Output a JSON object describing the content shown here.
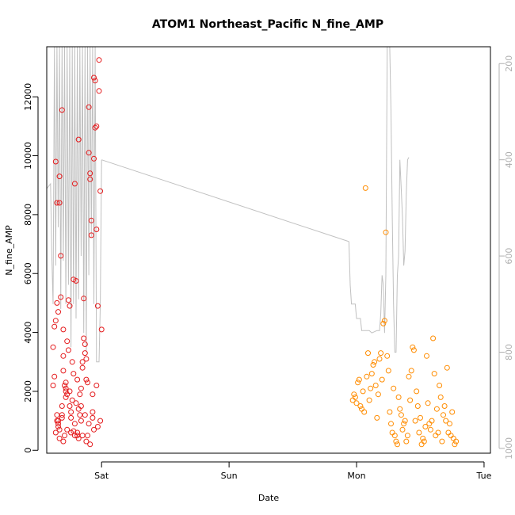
{
  "chart_data": {
    "type": "scatter",
    "title": "ATOM1 Northeast_Pacific N_fine_AMP",
    "xlabel": "Date",
    "ylabel": "N_fine_AMP",
    "x_tick_labels": [
      "Sat",
      "Sun",
      "Mon",
      "Tue"
    ],
    "x_range_days": [
      -0.43,
      3.05
    ],
    "ylim": [
      -100,
      13700
    ],
    "y_ticks": [
      0,
      2000,
      4000,
      6000,
      8000,
      10000,
      12000
    ],
    "y2_ticks": [
      200,
      400,
      600,
      800,
      1000
    ],
    "y2_range_reversed": [
      1010,
      165
    ],
    "grid": false,
    "series": [
      {
        "color": "#e41a1c",
        "x": [
          -0.38,
          -0.38,
          -0.37,
          -0.37,
          -0.36,
          -0.36,
          -0.35,
          -0.35,
          -0.35,
          -0.35,
          -0.34,
          -0.34,
          -0.34,
          -0.33,
          -0.33,
          -0.33,
          -0.32,
          -0.32,
          -0.31,
          -0.31,
          -0.31,
          -0.3,
          -0.3,
          -0.3,
          -0.29,
          -0.29,
          -0.28,
          -0.28,
          -0.28,
          -0.27,
          -0.27,
          -0.26,
          -0.26,
          -0.25,
          -0.25,
          -0.24,
          -0.24,
          -0.23,
          -0.23,
          -0.22,
          -0.22,
          -0.21,
          -0.21,
          -0.2,
          -0.2,
          -0.19,
          -0.19,
          -0.18,
          -0.18,
          -0.17,
          -0.17,
          -0.16,
          -0.16,
          -0.15,
          -0.15,
          -0.14,
          -0.14,
          -0.13,
          -0.13,
          -0.12,
          -0.12,
          -0.11,
          -0.11,
          -0.1,
          -0.1,
          -0.09,
          -0.09,
          -0.08,
          -0.08,
          -0.07,
          -0.07,
          -0.06,
          -0.06,
          -0.05,
          -0.05,
          -0.04,
          -0.04,
          -0.03,
          -0.02,
          -0.02,
          -0.01,
          -0.01,
          0.0,
          -0.36,
          -0.33,
          -0.3,
          -0.27,
          -0.24,
          -0.21,
          -0.18,
          -0.15,
          -0.12,
          -0.09,
          -0.06,
          -0.03,
          -0.34,
          -0.31,
          -0.28,
          -0.25,
          -0.22,
          -0.19,
          -0.16,
          -0.13,
          -0.1,
          -0.07,
          -0.04
        ],
        "y": [
          2200,
          3500,
          4200,
          2500,
          4400,
          9800,
          8400,
          5000,
          1200,
          1000,
          4700,
          900,
          800,
          700,
          9300,
          8400,
          6600,
          5200,
          1500,
          1200,
          11550,
          2700,
          3200,
          4100,
          2200,
          500,
          2300,
          2100,
          2000,
          1900,
          3700,
          3400,
          5100,
          4900,
          1500,
          1300,
          1100,
          3000,
          1700,
          650,
          5800,
          9050,
          900,
          1600,
          5750,
          500,
          600,
          1400,
          10550,
          1200,
          1900,
          2100,
          1000,
          3000,
          2800,
          5150,
          3800,
          3600,
          3300,
          3100,
          2400,
          2300,
          500,
          11650,
          10100,
          9400,
          9200,
          7300,
          7800,
          1300,
          1100,
          9900,
          12650,
          12550,
          10950,
          11000,
          7500,
          4900,
          13250,
          12200,
          1000,
          8800,
          4100,
          600,
          400,
          300,
          700,
          600,
          500,
          400,
          500,
          300,
          200,
          700,
          800,
          1000,
          1100,
          1800,
          2000,
          2600,
          2400,
          1500,
          1200,
          900,
          1900,
          2200
        ],
        "x_outliers": [],
        "y_outliers": []
      },
      {
        "color": "#ff8c00",
        "x": [
          1.97,
          1.98,
          1.99,
          2.0,
          2.01,
          2.02,
          2.03,
          2.04,
          2.05,
          2.06,
          2.07,
          2.08,
          2.09,
          2.1,
          2.11,
          2.12,
          2.13,
          2.14,
          2.15,
          2.16,
          2.17,
          2.18,
          2.19,
          2.2,
          2.21,
          2.22,
          2.23,
          2.24,
          2.25,
          2.26,
          2.27,
          2.28,
          2.29,
          2.3,
          2.31,
          2.32,
          2.33,
          2.34,
          2.35,
          2.36,
          2.37,
          2.38,
          2.39,
          2.4,
          2.41,
          2.42,
          2.43,
          2.44,
          2.45,
          2.46,
          2.47,
          2.48,
          2.49,
          2.5,
          2.51,
          2.52,
          2.53,
          2.54,
          2.55,
          2.56,
          2.57,
          2.58,
          2.59,
          2.6,
          2.61,
          2.62,
          2.63,
          2.64,
          2.65,
          2.66,
          2.67,
          2.68,
          2.69,
          2.7,
          2.71,
          2.72,
          2.73,
          2.74,
          2.75,
          2.76,
          2.77,
          2.78
        ],
        "y": [
          1700,
          1900,
          1800,
          1600,
          2300,
          2400,
          1500,
          1400,
          2000,
          1300,
          8900,
          2500,
          3300,
          1700,
          2100,
          2600,
          2900,
          3000,
          2200,
          1100,
          1900,
          3100,
          3300,
          2400,
          4300,
          4400,
          7400,
          3200,
          2700,
          1300,
          900,
          600,
          2100,
          500,
          300,
          200,
          1800,
          1400,
          1200,
          700,
          900,
          1000,
          300,
          500,
          2500,
          1700,
          2700,
          3500,
          3400,
          1000,
          2000,
          1500,
          600,
          1100,
          200,
          400,
          300,
          800,
          3200,
          1600,
          900,
          700,
          1000,
          3800,
          2600,
          500,
          1400,
          600,
          2200,
          1800,
          300,
          1200,
          1500,
          1000,
          2800,
          600,
          900,
          500,
          1300,
          400,
          200,
          300
        ],
        "x_outliers": [],
        "y_outliers": []
      }
    ],
    "secondary_line": {
      "color": "#c0c0c0",
      "axis": "right",
      "x": [
        -0.38,
        -0.37,
        -0.36,
        -0.35,
        -0.34,
        -0.33,
        -0.32,
        -0.31,
        -0.3,
        -0.29,
        -0.28,
        -0.27,
        -0.26,
        -0.25,
        -0.24,
        -0.23,
        -0.22,
        -0.21,
        -0.2,
        -0.19,
        -0.18,
        -0.17,
        -0.16,
        -0.15,
        -0.14,
        -0.13,
        -0.12,
        -0.11,
        -0.1,
        -0.09,
        -0.08,
        -0.07,
        -0.06,
        -0.05,
        -0.04,
        -0.03,
        -0.02,
        -0.01,
        0.0,
        1.94,
        1.95,
        1.96,
        1.99,
        2.0,
        2.02,
        2.04,
        2.06,
        2.08,
        2.1,
        2.12,
        2.14,
        2.16,
        2.18,
        2.2,
        2.22,
        2.24,
        2.26,
        2.28,
        2.3,
        2.32,
        2.34,
        2.36,
        2.38,
        2.4,
        2.42,
        2.44,
        2.46,
        2.48,
        2.5,
        2.52,
        2.54,
        2.56,
        2.58,
        2.6,
        2.62,
        2.64,
        2.66,
        2.68,
        2.7,
        2.72,
        2.74,
        2.76,
        2.78
      ],
      "y": [
        452,
        620,
        450,
        160,
        800,
        165,
        450,
        165,
        780,
        165,
        820,
        200,
        480,
        165,
        800,
        165,
        600,
        165,
        750,
        165,
        800,
        165,
        320,
        165,
        810,
        165,
        700,
        165,
        820,
        165,
        640,
        165,
        800,
        165,
        650,
        165,
        840,
        650,
        393,
        520,
        580,
        640,
        700,
        730,
        740,
        740,
        740,
        755,
        755,
        755,
        770,
        770,
        770,
        760,
        765,
        770,
        740,
        640,
        660,
        760,
        650,
        165,
        165,
        165,
        165,
        300,
        500,
        700,
        800,
        700,
        600,
        400,
        500,
        600,
        620,
        440,
        500,
        430,
        400,
        395,
        410,
        400,
        398
      ],
      "segments": [
        [
          [
            -0.43,
            460
          ],
          [
            -0.4,
            450
          ],
          [
            -0.39,
            600
          ],
          [
            -0.38,
            700
          ],
          [
            -0.37,
            165
          ],
          [
            -0.36,
            620
          ],
          [
            -0.35,
            165
          ],
          [
            -0.34,
            540
          ],
          [
            -0.33,
            165
          ],
          [
            -0.32,
            710
          ],
          [
            -0.31,
            165
          ],
          [
            -0.3,
            610
          ],
          [
            -0.29,
            165
          ],
          [
            -0.28,
            700
          ],
          [
            -0.27,
            165
          ],
          [
            -0.26,
            660
          ],
          [
            -0.25,
            165
          ],
          [
            -0.24,
            790
          ],
          [
            -0.23,
            165
          ],
          [
            -0.22,
            700
          ],
          [
            -0.21,
            165
          ],
          [
            -0.2,
            730
          ],
          [
            -0.19,
            165
          ],
          [
            -0.18,
            690
          ],
          [
            -0.17,
            165
          ],
          [
            -0.16,
            600
          ],
          [
            -0.15,
            165
          ],
          [
            -0.14,
            760
          ],
          [
            -0.13,
            165
          ],
          [
            -0.12,
            800
          ],
          [
            -0.11,
            165
          ],
          [
            -0.1,
            640
          ],
          [
            -0.09,
            165
          ],
          [
            -0.08,
            560
          ],
          [
            -0.07,
            165
          ],
          [
            -0.06,
            700
          ],
          [
            -0.05,
            165
          ],
          [
            -0.04,
            820
          ],
          [
            -0.03,
            820
          ],
          [
            -0.02,
            820
          ],
          [
            -0.01,
            700
          ],
          [
            0.0,
            400
          ]
        ],
        [
          [
            0.0,
            400
          ],
          [
            1.94,
            570
          ]
        ],
        [
          [
            1.94,
            570
          ],
          [
            1.95,
            660
          ],
          [
            1.96,
            700
          ],
          [
            1.99,
            700
          ],
          [
            2.0,
            730
          ],
          [
            2.03,
            730
          ],
          [
            2.04,
            755
          ],
          [
            2.1,
            755
          ],
          [
            2.12,
            760
          ],
          [
            2.16,
            755
          ],
          [
            2.18,
            755
          ],
          [
            2.19,
            720
          ],
          [
            2.2,
            640
          ],
          [
            2.21,
            660
          ],
          [
            2.22,
            760
          ],
          [
            2.23,
            640
          ],
          [
            2.24,
            165
          ],
          [
            2.25,
            165
          ],
          [
            2.26,
            165
          ],
          [
            2.27,
            300
          ],
          [
            2.28,
            520
          ],
          [
            2.29,
            700
          ],
          [
            2.3,
            800
          ],
          [
            2.31,
            800
          ],
          [
            2.32,
            640
          ],
          [
            2.33,
            600
          ],
          [
            2.34,
            400
          ],
          [
            2.35,
            460
          ],
          [
            2.36,
            520
          ],
          [
            2.37,
            620
          ],
          [
            2.38,
            590
          ],
          [
            2.39,
            470
          ],
          [
            2.4,
            400
          ],
          [
            2.41,
            395
          ]
        ]
      ]
    }
  }
}
